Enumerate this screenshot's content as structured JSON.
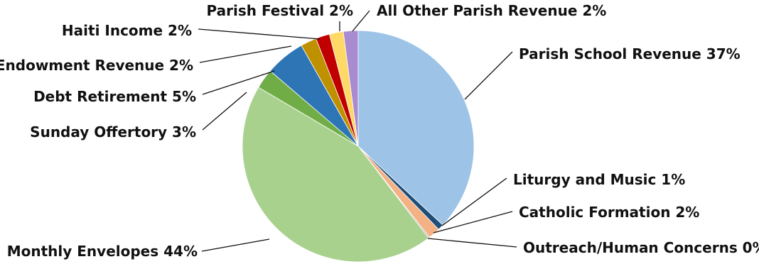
{
  "chart_data": {
    "type": "pie",
    "start": "12 o'clock",
    "direction": "clockwise",
    "legend": "none (callout labels with leader lines)",
    "slices": [
      {
        "name": "Parish School Revenue",
        "value": 37,
        "label": "Parish School Revenue 37%",
        "color": "#9dc3e6"
      },
      {
        "name": "Liturgy and Music",
        "value": 1,
        "label": "Liturgy and Music 1%",
        "color": "#1f4e79"
      },
      {
        "name": "Catholic Formation",
        "value": 2,
        "label": "Catholic Formation 2%",
        "color": "#f4b183"
      },
      {
        "name": "Outreach/Human Concerns",
        "value": 0,
        "label": "Outreach/Human Concerns 0%",
        "color": "#a5a5a5"
      },
      {
        "name": "Monthly Envelopes",
        "value": 44,
        "label": "Monthly Envelopes 44%",
        "color": "#a9d18e"
      },
      {
        "name": "Sunday Offertory",
        "value": 3,
        "label": "Sunday Offertory 3%",
        "color": "#70ad47"
      },
      {
        "name": "Debt Retirement",
        "value": 5,
        "label": "Debt Retirement 5%",
        "color": "#2e75b6"
      },
      {
        "name": "Endowment Revenue",
        "value": 2,
        "label": "Endowment Revenue 2%",
        "color": "#bf9000"
      },
      {
        "name": "Haiti Income",
        "value": 2,
        "label": "Haiti Income 2%",
        "color": "#c00000"
      },
      {
        "name": "Parish Festival",
        "value": 2,
        "label": "Parish Festival 2%",
        "color": "#ffd966"
      },
      {
        "name": "All Other Parish Revenue",
        "value": 2,
        "label": "All Other Parish Revenue 2%",
        "color": "#a98bd0"
      }
    ]
  }
}
